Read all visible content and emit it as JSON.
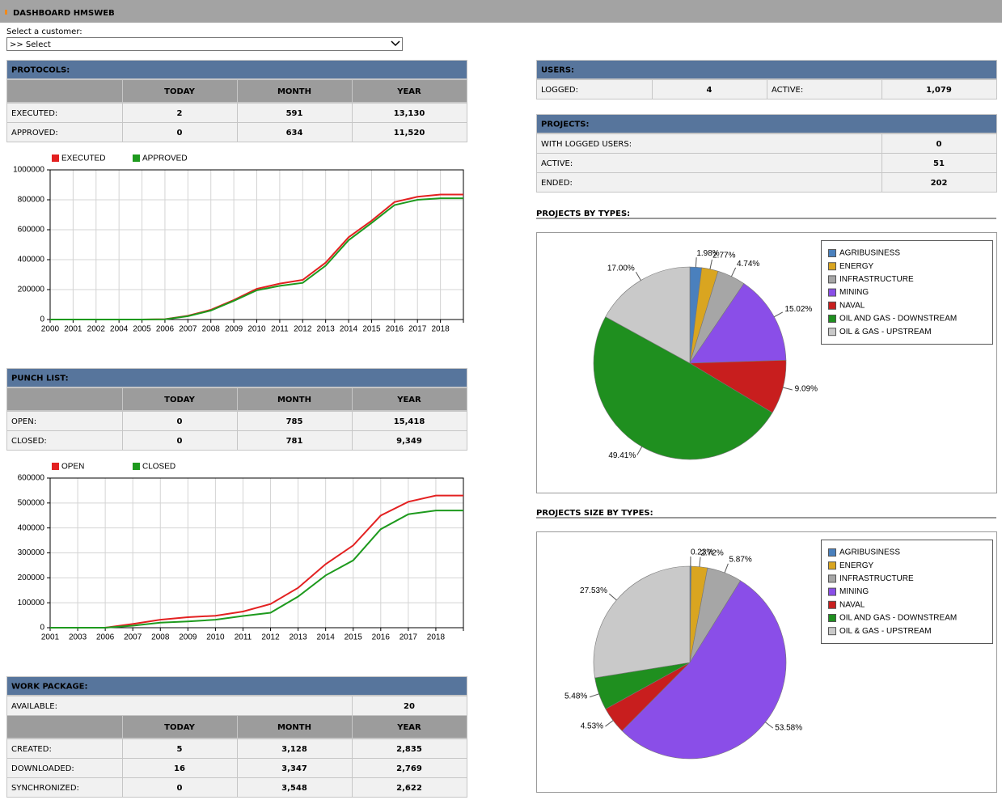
{
  "header": {
    "title": "DASHBOARD HMSWEB"
  },
  "customer": {
    "label": "Select a customer:",
    "selected": ">> Select"
  },
  "protocols": {
    "title": "PROTOCOLS:",
    "columns": [
      "TODAY",
      "MONTH",
      "YEAR"
    ],
    "rows": [
      [
        "EXECUTED:",
        "2",
        "591",
        "13,130"
      ],
      [
        "APPROVED:",
        "0",
        "634",
        "11,520"
      ]
    ]
  },
  "punch_list": {
    "title": "PUNCH LIST:",
    "columns": [
      "TODAY",
      "MONTH",
      "YEAR"
    ],
    "rows": [
      [
        "OPEN:",
        "0",
        "785",
        "15,418"
      ],
      [
        "CLOSED:",
        "0",
        "781",
        "9,349"
      ]
    ]
  },
  "work_package": {
    "title": "WORK PACKAGE:",
    "available": [
      "AVAILABLE:",
      "20"
    ],
    "columns": [
      "TODAY",
      "MONTH",
      "YEAR"
    ],
    "rows": [
      [
        "CREATED:",
        "5",
        "3,128",
        "2,835"
      ],
      [
        "DOWNLOADED:",
        "16",
        "3,347",
        "2,769"
      ],
      [
        "SYNCHRONIZED:",
        "0",
        "3,548",
        "2,622"
      ]
    ]
  },
  "users": {
    "title": "USERS:",
    "row": [
      "LOGGED:",
      "4",
      "ACTIVE:",
      "1,079"
    ]
  },
  "projects": {
    "title": "PROJECTS:",
    "rows": [
      [
        "WITH LOGGED USERS:",
        "0"
      ],
      [
        "ACTIVE:",
        "51"
      ],
      [
        "ENDED:",
        "202"
      ]
    ]
  },
  "chart_data": [
    {
      "type": "line",
      "categories": [
        "2000",
        "2001",
        "2002",
        "2004",
        "2005",
        "2006",
        "2007",
        "2008",
        "2009",
        "2010",
        "2011",
        "2012",
        "2013",
        "2014",
        "2015",
        "2016",
        "2017",
        "2018",
        null
      ],
      "series": [
        {
          "name": "EXECUTED",
          "color": "#e32121",
          "values": [
            0,
            0,
            0,
            0,
            0,
            2000,
            25000,
            65000,
            130000,
            205000,
            240000,
            265000,
            380000,
            550000,
            660000,
            785000,
            820000,
            835000,
            835000
          ]
        },
        {
          "name": "APPROVED",
          "color": "#1e9a1e",
          "values": [
            0,
            0,
            0,
            0,
            0,
            1000,
            22000,
            60000,
            125000,
            195000,
            225000,
            245000,
            360000,
            530000,
            645000,
            765000,
            800000,
            810000,
            810000
          ]
        }
      ],
      "ylim": [
        0,
        1000000
      ],
      "yticks": [
        0,
        200000,
        400000,
        600000,
        800000,
        1000000
      ],
      "grid": true
    },
    {
      "type": "line",
      "categories": [
        "2001",
        "2003",
        "2006",
        "2007",
        "2008",
        "2009",
        "2010",
        "2011",
        "2012",
        "2013",
        "2014",
        "2015",
        "2016",
        "2017",
        "2018",
        null
      ],
      "series": [
        {
          "name": "OPEN",
          "color": "#e32121",
          "values": [
            0,
            0,
            0,
            15000,
            32000,
            42000,
            48000,
            65000,
            95000,
            160000,
            255000,
            330000,
            450000,
            505000,
            530000,
            530000
          ]
        },
        {
          "name": "CLOSED",
          "color": "#1e9a1e",
          "values": [
            0,
            0,
            0,
            8000,
            20000,
            25000,
            32000,
            47000,
            60000,
            125000,
            210000,
            270000,
            395000,
            455000,
            470000,
            470000
          ]
        }
      ],
      "ylim": [
        0,
        600000
      ],
      "yticks": [
        0,
        100000,
        200000,
        300000,
        400000,
        500000,
        600000
      ],
      "grid": true
    },
    {
      "type": "pie",
      "title": "PROJECTS BY TYPES:",
      "categories": [
        "AGRIBUSINESS",
        "ENERGY",
        "INFRASTRUCTURE",
        "MINING",
        "NAVAL",
        "OIL AND GAS - DOWNSTREAM",
        "OIL & GAS - UPSTREAM"
      ],
      "colors": [
        "#4a80bd",
        "#d9a520",
        "#a6a6a6",
        "#8a4ee8",
        "#c81e1e",
        "#1f8f1f",
        "#c9c9c9"
      ],
      "values": [
        1.98,
        2.77,
        4.74,
        15.02,
        9.09,
        49.41,
        17.0
      ],
      "value_labels": [
        "1.98%",
        "2.77%",
        "4.74%",
        "15.02%",
        "9.09%",
        "49.41%",
        "17.00%"
      ]
    },
    {
      "type": "pie",
      "title": "PROJECTS SIZE BY TYPES:",
      "categories": [
        "AGRIBUSINESS",
        "ENERGY",
        "INFRASTRUCTURE",
        "MINING",
        "NAVAL",
        "OIL AND GAS - DOWNSTREAM",
        "OIL & GAS - UPSTREAM"
      ],
      "colors": [
        "#4a80bd",
        "#d9a520",
        "#a6a6a6",
        "#8a4ee8",
        "#c81e1e",
        "#1f8f1f",
        "#c9c9c9"
      ],
      "values": [
        0.23,
        2.72,
        5.87,
        53.58,
        4.53,
        5.48,
        27.53
      ],
      "value_labels": [
        "0.23%",
        "2.72%",
        "5.87%",
        "53.58%",
        "4.53%",
        "5.48%",
        "27.53%"
      ]
    }
  ]
}
